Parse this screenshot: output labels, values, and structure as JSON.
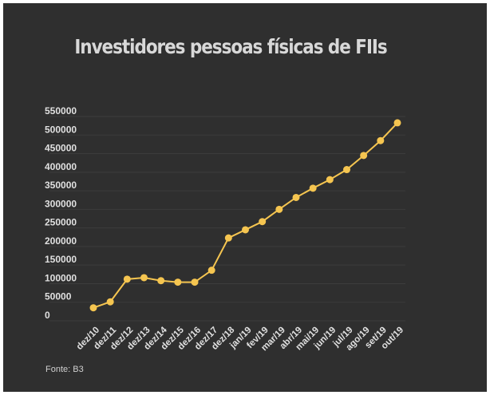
{
  "chart_data": {
    "type": "line",
    "title": "Investidores pessoas físicas de FIIs",
    "xlabel": "",
    "ylabel": "",
    "categories": [
      "dez/10",
      "dez/11",
      "dez/12",
      "dez/13",
      "dez/14",
      "dez/15",
      "dez/16",
      "dez/17",
      "dez/18",
      "jan/19",
      "fev/19",
      "mar/19",
      "abr/19",
      "mai/19",
      "jun/19",
      "jul/19",
      "ago/19",
      "set/19",
      "out/19"
    ],
    "series": [
      {
        "values": [
          20000,
          36000,
          97000,
          101000,
          93000,
          89000,
          89000,
          121000,
          208000,
          230000,
          252000,
          285000,
          317000,
          342000,
          365000,
          392000,
          430000,
          470000,
          518000
        ],
        "color": "#f5c550"
      }
    ],
    "yticks": [
      0,
      50000,
      100000,
      150000,
      200000,
      250000,
      300000,
      350000,
      400000,
      450000,
      500000,
      550000
    ],
    "ylim": [
      0,
      550000
    ],
    "grid": true,
    "background": "#2f2f2f",
    "source": "Fonte: B3"
  }
}
